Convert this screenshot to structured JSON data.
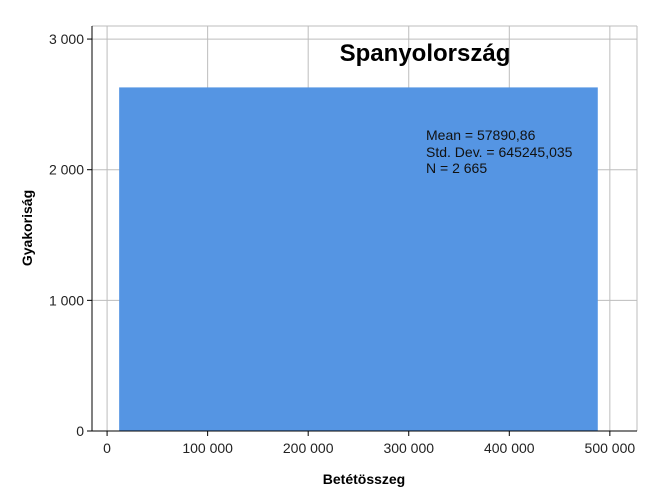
{
  "chart_data": {
    "type": "bar",
    "title": "Spanyolország",
    "xlabel": "Betétösszeg",
    "ylabel": "Gyakoriság",
    "xlim": [
      -15000,
      527000
    ],
    "ylim": [
      0,
      3100
    ],
    "x_ticks": [
      0,
      100000,
      200000,
      300000,
      400000,
      500000
    ],
    "x_tick_labels": [
      "0",
      "100 000",
      "200 000",
      "300 000",
      "400 000",
      "500 000"
    ],
    "y_ticks": [
      0,
      1000,
      2000,
      3000
    ],
    "y_tick_labels": [
      "0",
      "1 000",
      "2 000",
      "3 000"
    ],
    "bins": [
      {
        "x_start": 12000,
        "x_end": 488000,
        "value": 2630
      }
    ],
    "grid": true,
    "colors": {
      "bar": "#5595e3",
      "grid": "#bdbdbd",
      "axis": "#000000"
    },
    "stats": {
      "mean": "Mean = 57890,86",
      "std_dev": "Std. Dev. = 645245,035",
      "n": "N = 2 665"
    }
  }
}
